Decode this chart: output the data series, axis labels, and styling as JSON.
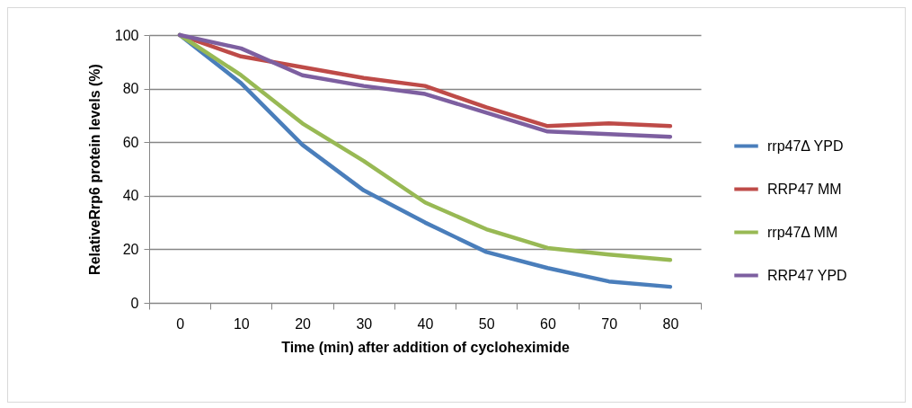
{
  "chart_data": {
    "type": "line",
    "xlabel": "Time (min) after addition of cycloheximide",
    "ylabel": "RelativeRrp6 protein levels (%)",
    "categories": [
      "0",
      "10",
      "20",
      "30",
      "40",
      "50",
      "60",
      "70",
      "80"
    ],
    "series": [
      {
        "name": "rrp47Δ YPD",
        "color": "#4a7ebb",
        "values": [
          100,
          82,
          59,
          42,
          30,
          19,
          13,
          8,
          6
        ]
      },
      {
        "name": "RRP47 MM",
        "color": "#be4b48",
        "values": [
          100,
          92,
          88,
          84,
          81,
          73,
          66,
          67,
          66
        ]
      },
      {
        "name": "rrp47Δ MM",
        "color": "#98b954",
        "values": [
          100,
          85,
          67,
          53,
          37.5,
          27.5,
          20.5,
          18,
          16
        ]
      },
      {
        "name": "RRP47 YPD",
        "color": "#7d5fa0",
        "values": [
          100,
          95,
          85,
          81,
          78,
          71,
          64,
          63,
          62
        ]
      }
    ],
    "ylim": [
      0,
      100
    ],
    "yticks": [
      0,
      20,
      40,
      60,
      80,
      100
    ],
    "grid": "y",
    "legend": "right",
    "marker": "none",
    "line_style": "solid"
  }
}
